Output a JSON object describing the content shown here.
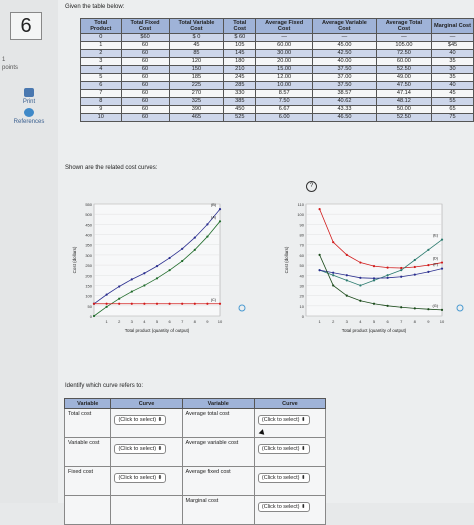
{
  "question": {
    "number": "6",
    "points": "1\npoints"
  },
  "sidebar": {
    "print_label": "Print",
    "references_label": "References"
  },
  "intro_text": "Given the table below:",
  "cost_table": {
    "headers": [
      "Total Product",
      "Total Fixed Cost",
      "Total Variable Cost",
      "Total Cost",
      "Average Fixed Cost",
      "Average Variable Cost",
      "Average Total Cost",
      "Marginal Cost"
    ],
    "rows": [
      [
        "0",
        "$60",
        "$ 0",
        "$ 60",
        "—",
        "—",
        "—",
        "—"
      ],
      [
        "1",
        "60",
        "45",
        "105",
        "60.00",
        "45.00",
        "105.00",
        "$45"
      ],
      [
        "2",
        "60",
        "85",
        "145",
        "30.00",
        "42.50",
        "72.50",
        "40"
      ],
      [
        "3",
        "60",
        "120",
        "180",
        "20.00",
        "40.00",
        "60.00",
        "35"
      ],
      [
        "4",
        "60",
        "150",
        "210",
        "15.00",
        "37.50",
        "52.50",
        "30"
      ],
      [
        "5",
        "60",
        "185",
        "245",
        "12.00",
        "37.00",
        "49.00",
        "35"
      ],
      [
        "6",
        "60",
        "225",
        "285",
        "10.00",
        "37.50",
        "47.50",
        "40"
      ],
      [
        "7",
        "60",
        "270",
        "330",
        "8.57",
        "38.57",
        "47.14",
        "45"
      ],
      [
        "8",
        "60",
        "325",
        "385",
        "7.50",
        "40.62",
        "48.12",
        "55"
      ],
      [
        "9",
        "60",
        "390",
        "450",
        "6.67",
        "43.33",
        "50.00",
        "65"
      ],
      [
        "10",
        "60",
        "465",
        "525",
        "6.00",
        "46.50",
        "52.50",
        "75"
      ]
    ]
  },
  "curves_text": "Shown are the related cost curves:",
  "help_icon": "?",
  "chart_data": [
    {
      "type": "line",
      "x": [
        0,
        1,
        2,
        3,
        4,
        5,
        6,
        7,
        8,
        9,
        10
      ],
      "series": [
        {
          "name": "(B)",
          "values": [
            60,
            105,
            145,
            180,
            210,
            245,
            285,
            330,
            385,
            450,
            525
          ],
          "color": "#2b2f8f"
        },
        {
          "name": "(A)",
          "values": [
            0,
            45,
            85,
            120,
            150,
            185,
            225,
            270,
            325,
            390,
            465
          ],
          "color": "#1f6b2a"
        },
        {
          "name": "(C)",
          "values": [
            60,
            60,
            60,
            60,
            60,
            60,
            60,
            60,
            60,
            60,
            60
          ],
          "color": "#d11a1a"
        }
      ],
      "xlabel": "Total product (quantity of output)",
      "ylabel": "Cost (dollars)",
      "ylim": [
        0,
        550
      ],
      "yticks": [
        "0",
        "50",
        "100",
        "150",
        "200",
        "250",
        "300",
        "350",
        "400",
        "450",
        "500",
        "550"
      ],
      "xticks": [
        "1",
        "2",
        "3",
        "4",
        "5",
        "6",
        "7",
        "8",
        "9",
        "10"
      ]
    },
    {
      "type": "line",
      "x": [
        1,
        2,
        3,
        4,
        5,
        6,
        7,
        8,
        9,
        10
      ],
      "series": [
        {
          "name": "(D)",
          "values": [
            105,
            72.5,
            60,
            52.5,
            49,
            47.5,
            47.14,
            48.12,
            50,
            52.5
          ],
          "color": "#d11a1a"
        },
        {
          "name": "(E)",
          "values": [
            45,
            40,
            35,
            30,
            35,
            40,
            45,
            55,
            65,
            75
          ],
          "color": "#2a7a6e"
        },
        {
          "name": "(F)",
          "values": [
            45,
            42.5,
            40,
            37.5,
            37,
            37.5,
            38.57,
            40.62,
            43.33,
            46.5
          ],
          "color": "#2b2f8f"
        },
        {
          "name": "(G)",
          "values": [
            60,
            30,
            20,
            15,
            12,
            10,
            8.57,
            7.5,
            6.67,
            6
          ],
          "color": "#1a4a1a"
        }
      ],
      "xlabel": "Total product (quantity of output)",
      "ylabel": "Cost (dollars)",
      "ylim": [
        0,
        110
      ],
      "yticks": [
        "0",
        "10",
        "20",
        "30",
        "40",
        "50",
        "60",
        "70",
        "80",
        "90",
        "100",
        "110"
      ],
      "xticks": [
        "1",
        "2",
        "3",
        "4",
        "5",
        "6",
        "7",
        "8",
        "9",
        "10"
      ]
    }
  ],
  "identify_text": "Identify which curve refers to:",
  "match_table": {
    "headers": [
      "Variable",
      "Curve",
      "Variable",
      "Curve"
    ],
    "rows": [
      [
        "Total cost",
        "(Click to select) ⬍",
        "Average total cost",
        "(Click to select) ⬍"
      ],
      [
        "Variable cost",
        "(Click to select) ⬍",
        "Average variable cost",
        "(Click to select) ⬍"
      ],
      [
        "Fixed cost",
        "(Click to select) ⬍",
        "Average fixed cost",
        "(Click to select) ⬍"
      ],
      [
        "",
        "",
        "Marginal cost",
        "(Click to select) ⬍"
      ]
    ]
  },
  "colors": {
    "header_blue": "#9fb3d8",
    "row_alt": "#cdd6ea"
  }
}
